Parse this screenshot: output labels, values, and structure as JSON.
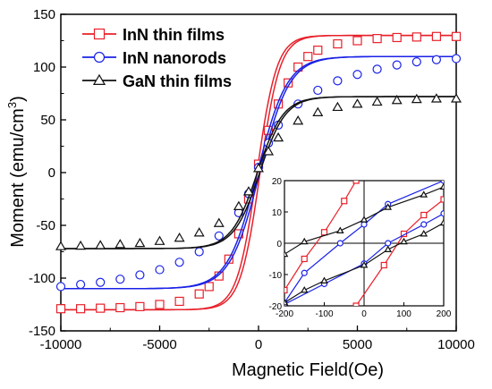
{
  "chart_data": [
    {
      "type": "line",
      "title": "",
      "xlabel": "Magnetic Field(Oe)",
      "ylabel_main": "Moment (emu/cm",
      "ylabel_sup": "3",
      "ylabel_close": ")",
      "xlim": [
        -10000,
        10000
      ],
      "ylim": [
        -150,
        150
      ],
      "xticks": [
        -10000,
        -5000,
        0,
        5000,
        10000
      ],
      "yticks": [
        -150,
        -100,
        -50,
        0,
        50,
        100,
        150
      ],
      "xtick_labels": [
        "-10000",
        "-5000",
        "0",
        "5000",
        "10000"
      ],
      "ytick_labels": [
        "-150",
        "-100",
        "-50",
        "0",
        "50",
        "100",
        "150"
      ],
      "grid": false,
      "legend_position": "top-left",
      "series": [
        {
          "name": "InN thin films",
          "color": "#e8202a",
          "marker": "square",
          "ms": 130,
          "hc": 80,
          "w": 1000,
          "points": [
            [
              -10000,
              -129
            ],
            [
              -9000,
              -129
            ],
            [
              -8000,
              -128.5
            ],
            [
              -7000,
              -128
            ],
            [
              -6000,
              -127
            ],
            [
              -5000,
              -125
            ],
            [
              -4000,
              -122
            ],
            [
              -3000,
              -115
            ],
            [
              -2500,
              -108
            ],
            [
              -2000,
              -98
            ],
            [
              -1500,
              -82
            ],
            [
              -1000,
              -58
            ],
            [
              -500,
              -25
            ],
            [
              0,
              8
            ],
            [
              500,
              40
            ],
            [
              1000,
              65
            ],
            [
              1500,
              85
            ],
            [
              2000,
              100
            ],
            [
              2500,
              110
            ],
            [
              3000,
              116
            ],
            [
              4000,
              122
            ],
            [
              5000,
              125
            ],
            [
              6000,
              127
            ],
            [
              7000,
              128
            ],
            [
              8000,
              128.5
            ],
            [
              9000,
              129
            ],
            [
              10000,
              129
            ]
          ]
        },
        {
          "name": "InN nanorods",
          "color": "#1a22e6",
          "marker": "circle",
          "ms": 110,
          "hc": 60,
          "w": 1500,
          "points": [
            [
              -10000,
              -108
            ],
            [
              -9000,
              -106
            ],
            [
              -8000,
              -104
            ],
            [
              -7000,
              -101
            ],
            [
              -6000,
              -97
            ],
            [
              -5000,
              -92
            ],
            [
              -4000,
              -85
            ],
            [
              -3000,
              -75
            ],
            [
              -2000,
              -60
            ],
            [
              -1000,
              -38
            ],
            [
              -500,
              -20
            ],
            [
              0,
              5
            ],
            [
              500,
              28
            ],
            [
              1000,
              45
            ],
            [
              2000,
              65
            ],
            [
              3000,
              78
            ],
            [
              4000,
              87
            ],
            [
              5000,
              93
            ],
            [
              6000,
              98
            ],
            [
              7000,
              102
            ],
            [
              8000,
              105
            ],
            [
              9000,
              107
            ],
            [
              10000,
              108
            ]
          ]
        },
        {
          "name": "GaN thin films",
          "color": "#111111",
          "marker": "triangle",
          "ms": 72,
          "hc": 60,
          "w": 1300,
          "points": [
            [
              -10000,
              -70
            ],
            [
              -9000,
              -69.5
            ],
            [
              -8000,
              -69
            ],
            [
              -7000,
              -68
            ],
            [
              -6000,
              -67
            ],
            [
              -5000,
              -65
            ],
            [
              -4000,
              -62
            ],
            [
              -3000,
              -57
            ],
            [
              -2000,
              -48
            ],
            [
              -1000,
              -32
            ],
            [
              -500,
              -18
            ],
            [
              0,
              4
            ],
            [
              500,
              20
            ],
            [
              1000,
              33
            ],
            [
              2000,
              49
            ],
            [
              3000,
              57
            ],
            [
              4000,
              62
            ],
            [
              5000,
              65
            ],
            [
              6000,
              67
            ],
            [
              7000,
              68.5
            ],
            [
              8000,
              69.5
            ],
            [
              9000,
              70
            ],
            [
              10000,
              70
            ]
          ]
        }
      ]
    },
    {
      "type": "line",
      "title": "",
      "xlabel": "",
      "ylabel": "",
      "position": "inset lower-right",
      "xlim": [
        -200,
        200
      ],
      "ylim": [
        -20,
        20
      ],
      "xticks": [
        -200,
        -100,
        0,
        100,
        200
      ],
      "yticks": [
        -20,
        -10,
        0,
        10,
        20
      ],
      "xtick_labels": [
        "-200",
        "-100",
        "0",
        "100",
        "200"
      ],
      "ytick_labels": [
        "-20",
        "-10",
        "0",
        "10",
        "20"
      ],
      "crosshair_at": [
        0,
        0
      ],
      "series": [
        {
          "color": "#e8202a",
          "marker": "square",
          "upper": [
            [
              -200,
              -15
            ],
            [
              -150,
              -5
            ],
            [
              -100,
              3.5
            ],
            [
              -50,
              13.5
            ],
            [
              -20,
              20
            ]
          ],
          "lower": [
            [
              -20,
              -20
            ],
            [
              50,
              -7
            ],
            [
              100,
              3
            ],
            [
              150,
              9
            ],
            [
              200,
              14
            ]
          ]
        },
        {
          "color": "#1a22e6",
          "marker": "circle",
          "upper": [
            [
              -200,
              -19
            ],
            [
              -150,
              -9.5
            ],
            [
              -60,
              0
            ],
            [
              0,
              6
            ],
            [
              60,
              12.5
            ],
            [
              200,
              20
            ]
          ],
          "lower": [
            [
              -200,
              -19.5
            ],
            [
              -100,
              -13
            ],
            [
              0,
              -6.5
            ],
            [
              60,
              0
            ],
            [
              150,
              6
            ],
            [
              200,
              9.5
            ]
          ]
        },
        {
          "color": "#111111",
          "marker": "triangle",
          "upper": [
            [
              -200,
              -3.5
            ],
            [
              -150,
              0.5
            ],
            [
              -60,
              4
            ],
            [
              0,
              7.5
            ],
            [
              60,
              11.5
            ],
            [
              150,
              15.5
            ],
            [
              200,
              18
            ]
          ],
          "lower": [
            [
              -200,
              -19
            ],
            [
              -150,
              -15
            ],
            [
              -100,
              -12
            ],
            [
              0,
              -7
            ],
            [
              60,
              -2
            ],
            [
              100,
              0.5
            ],
            [
              150,
              3
            ],
            [
              200,
              6.5
            ]
          ]
        }
      ]
    }
  ]
}
